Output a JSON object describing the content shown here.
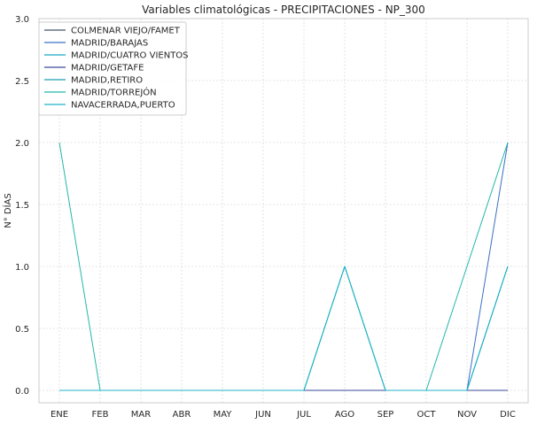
{
  "chart_data": {
    "type": "line",
    "title": "Variables climatológicas - PRECIPITACIONES - NP_300",
    "xlabel": "",
    "ylabel": "N° DÍAS",
    "categories": [
      "ENE",
      "FEB",
      "MAR",
      "ABR",
      "MAY",
      "JUN",
      "JUL",
      "AGO",
      "SEP",
      "OCT",
      "NOV",
      "DIC"
    ],
    "ylim": [
      -0.1,
      3.0
    ],
    "yticks": [
      "0.0",
      "0.5",
      "1.0",
      "1.5",
      "2.0",
      "2.5",
      "3.0"
    ],
    "grid": true,
    "legend_position": "top-left",
    "series": [
      {
        "name": "COLMENAR VIEJO/FAMET",
        "color": "#44546a",
        "values": [
          0,
          0,
          0,
          0,
          0,
          0,
          0,
          0,
          0,
          0,
          0,
          0
        ]
      },
      {
        "name": "MADRID/BARAJAS",
        "color": "#3a6fc4",
        "values": [
          0,
          0,
          0,
          0,
          0,
          0,
          0,
          0,
          0,
          0,
          0,
          2
        ]
      },
      {
        "name": "MADRID/CUATRO VIENTOS",
        "color": "#1aa7c4",
        "values": [
          0,
          0,
          0,
          0,
          0,
          0,
          0,
          0,
          0,
          0,
          0,
          1
        ]
      },
      {
        "name": "MADRID/GETAFE",
        "color": "#3b4a9a",
        "values": [
          0,
          0,
          0,
          0,
          0,
          0,
          0,
          0,
          0,
          0,
          0,
          0
        ]
      },
      {
        "name": "MADRID,RETIRO",
        "color": "#1f9fb4",
        "values": [
          0,
          0,
          0,
          0,
          0,
          0,
          0,
          1,
          0,
          0,
          0,
          1
        ]
      },
      {
        "name": "MADRID/TORREJÓN",
        "color": "#22b7a8",
        "values": [
          2,
          0,
          0,
          0,
          0,
          0,
          0,
          1,
          0,
          0,
          1,
          2
        ]
      },
      {
        "name": "NAVACERRADA,PUERTO",
        "color": "#1fb3c8",
        "values": [
          0,
          0,
          0,
          0,
          0,
          0,
          0,
          1,
          0,
          0,
          0,
          1
        ]
      }
    ]
  }
}
